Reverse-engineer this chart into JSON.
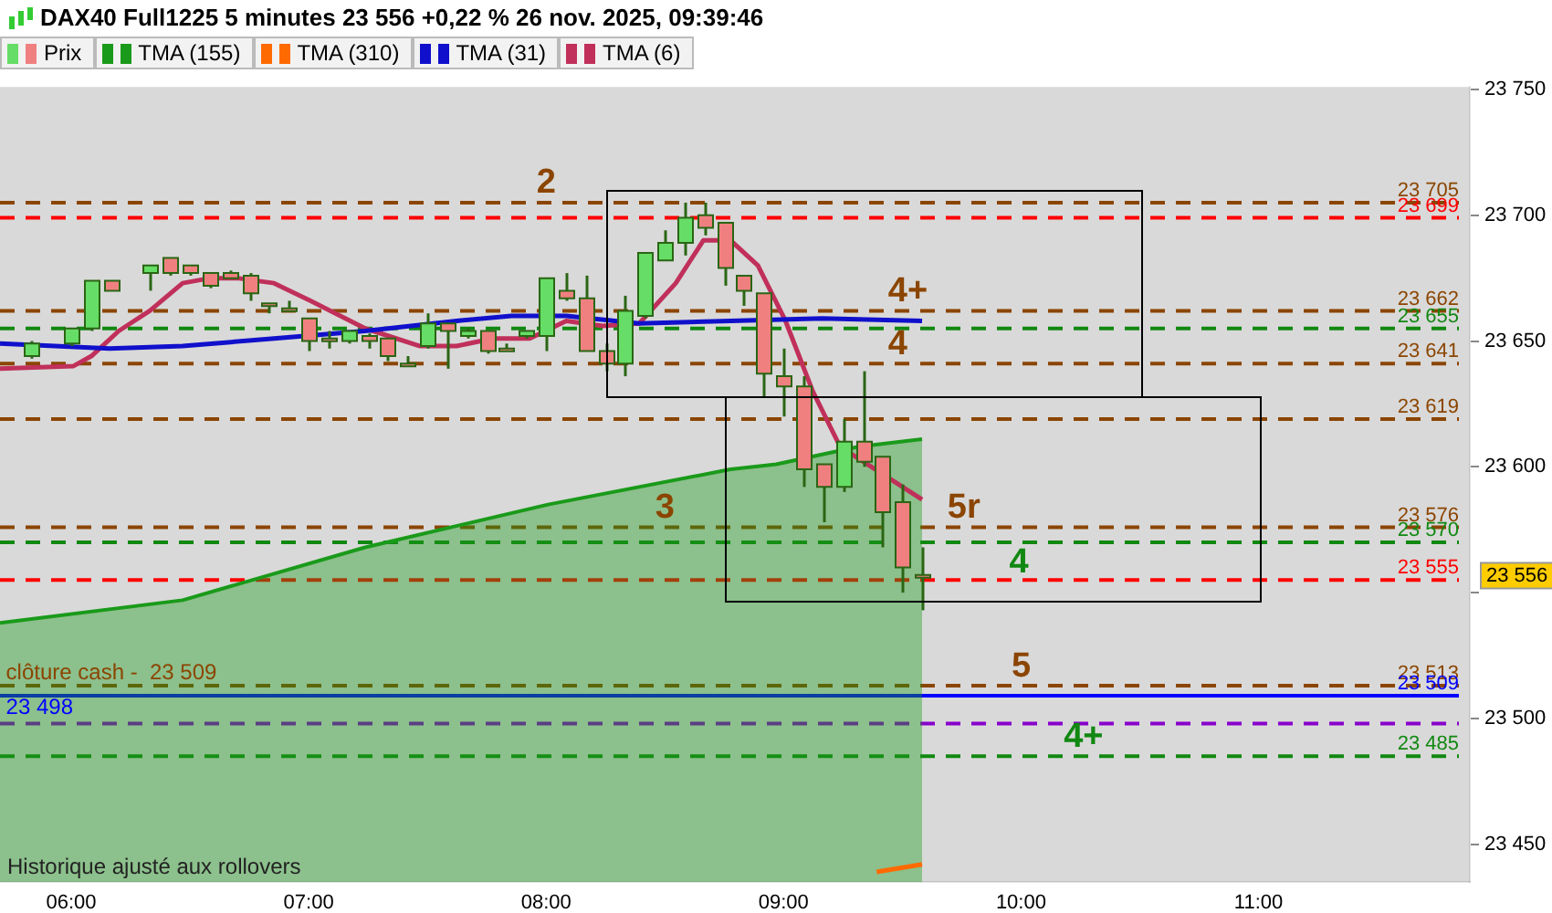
{
  "chart_data": {
    "type": "candlestick",
    "title": "DAX40 Full1225 5 minutes 23 556 +0,22 % 26 nov. 2025, 09:39:46",
    "legend": "top left",
    "marker": "none",
    "grid": false,
    "xlim": [
      5.7,
      11.89
    ],
    "xticks": [
      {
        "value": 6,
        "label": "06:00"
      },
      {
        "value": 7,
        "label": "07:00"
      },
      {
        "value": 8,
        "label": "08:00"
      },
      {
        "value": 9,
        "label": "09:00"
      },
      {
        "value": 10,
        "label": "10:00"
      },
      {
        "value": 11,
        "label": "11:00"
      }
    ],
    "ylim": [
      23435,
      23751
    ],
    "yticks": [
      {
        "value": 23450,
        "label": "23 450"
      },
      {
        "value": 23500,
        "label": "23 500"
      },
      {
        "value": 23550,
        "label": null
      },
      {
        "value": 23600,
        "label": "23 600"
      },
      {
        "value": 23650,
        "label": "23 650"
      },
      {
        "value": 23700,
        "label": "23 700"
      },
      {
        "value": 23750,
        "label": "23 750"
      }
    ],
    "series": [
      {
        "name": "Prix",
        "x": [
          5.8333,
          6,
          6.0833,
          6.1667,
          6.3333,
          6.4167,
          6.5,
          6.5833,
          6.6667,
          6.75,
          6.8333,
          6.9167,
          7,
          7.0833,
          7.1667,
          7.25,
          7.3333,
          7.4167,
          7.5,
          7.5833,
          7.6667,
          7.75,
          7.8333,
          7.9167,
          8,
          8.0833,
          8.1667,
          8.25,
          8.3333,
          8.4167,
          8.5,
          8.5833,
          8.6667,
          8.75,
          8.8333,
          8.9167,
          9,
          9.0833,
          9.1667,
          9.25,
          9.3333,
          9.4167,
          9.5,
          9.5833
        ],
        "ohlc": [
          [
            23644,
            23650,
            23643,
            23649
          ],
          [
            23649,
            23655,
            23648,
            23655
          ],
          [
            23655,
            23674,
            23654,
            23674
          ],
          [
            23674,
            23674,
            23670,
            23670
          ],
          [
            23677,
            23680,
            23670,
            23680
          ],
          [
            23683,
            23683,
            23676,
            23677
          ],
          [
            23680,
            23680,
            23676,
            23677
          ],
          [
            23677,
            23677,
            23671,
            23672
          ],
          [
            23677,
            23678,
            23675,
            23675
          ],
          [
            23676,
            23677,
            23666,
            23669
          ],
          [
            23665,
            23665,
            23661,
            23664
          ],
          [
            23663,
            23666,
            23662,
            23662
          ],
          [
            23659,
            23659,
            23646,
            23650
          ],
          [
            23651,
            23654,
            23647,
            23650
          ],
          [
            23650,
            23654,
            23649,
            23654
          ],
          [
            23652,
            23653,
            23647,
            23650
          ],
          [
            23651,
            23651,
            23642,
            23644
          ],
          [
            23641,
            23644,
            23640,
            23640
          ],
          [
            23648,
            23661,
            23647,
            23657
          ],
          [
            23657,
            23657,
            23639,
            23654
          ],
          [
            23652,
            23655,
            23651,
            23654
          ],
          [
            23654,
            23654,
            23645,
            23646
          ],
          [
            23647,
            23649,
            23646,
            23646
          ],
          [
            23652,
            23654,
            23651,
            23654
          ],
          [
            23652,
            23675,
            23646,
            23675
          ],
          [
            23670,
            23677,
            23666,
            23667
          ],
          [
            23667,
            23676,
            23646,
            23646
          ],
          [
            23646,
            23649,
            23638,
            23641
          ],
          [
            23641,
            23668,
            23636,
            23662
          ],
          [
            23660,
            23685,
            23659,
            23685
          ],
          [
            23682,
            23694,
            23682,
            23689
          ],
          [
            23689,
            23705,
            23684,
            23699
          ],
          [
            23700,
            23705,
            23692,
            23695
          ],
          [
            23697,
            23697,
            23672,
            23679
          ],
          [
            23676,
            23676,
            23664,
            23670
          ],
          [
            23669,
            23669,
            23628,
            23637
          ],
          [
            23636,
            23647,
            23620,
            23632
          ],
          [
            23632,
            23636,
            23592,
            23599
          ],
          [
            23601,
            23601,
            23578,
            23592
          ],
          [
            23592,
            23619,
            23590,
            23610
          ],
          [
            23610,
            23638,
            23600,
            23602
          ],
          [
            23604,
            23604,
            23568,
            23582
          ],
          [
            23586,
            23593,
            23550,
            23560
          ],
          [
            23557,
            23568,
            23543,
            23556
          ]
        ],
        "value_labels": [
          null,
          null,
          null,
          null,
          null,
          null,
          null,
          null,
          null,
          null,
          null,
          null,
          null,
          null,
          null,
          null,
          null,
          null,
          null,
          null,
          null,
          null,
          null,
          null,
          null,
          null,
          null,
          null,
          null,
          null,
          null,
          null,
          null,
          null,
          null,
          null,
          null,
          null,
          null,
          null,
          null,
          null,
          null,
          "23 556"
        ],
        "colors": [
          "#66dd66",
          "#66dd66",
          "#66dd66",
          "#f08080",
          "#66dd66",
          "#f08080",
          "#f08080",
          "#f08080",
          "#f08080",
          "#f08080",
          "#f08080",
          "#f08080",
          "#f08080",
          "#f08080",
          "#66dd66",
          "#f08080",
          "#f08080",
          "#f08080",
          "#66dd66",
          "#f08080",
          "#66dd66",
          "#f08080",
          "#f08080",
          "#66dd66",
          "#66dd66",
          "#f08080",
          "#f08080",
          "#f08080",
          "#66dd66",
          "#66dd66",
          "#66dd66",
          "#66dd66",
          "#f08080",
          "#f08080",
          "#f08080",
          "#f08080",
          "#f08080",
          "#f08080",
          "#f08080",
          "#66dd66",
          "#f08080",
          "#f08080",
          "#f08080",
          "#f08080"
        ]
      },
      {
        "name": "TMA (155)",
        "type": "area",
        "color": "#1a9a1a",
        "x": [
          5.7,
          6.469,
          7.238,
          8.008,
          8.777,
          8.969,
          9.315,
          9.5833
        ],
        "values": [
          23538,
          23547,
          23568,
          23585,
          23599,
          23601,
          23608,
          23611
        ]
      },
      {
        "name": "TMA (310)",
        "type": "line",
        "color": "#ff6a00",
        "x": [
          9.392,
          9.5833
        ],
        "values": [
          23439,
          23442
        ]
      },
      {
        "name": "TMA (31)",
        "type": "line",
        "color": "#1010cc",
        "x": [
          5.7,
          6.162,
          6.469,
          6.854,
          7.238,
          7.623,
          7.854,
          8.085,
          8.392,
          8.777,
          9.162,
          9.5833
        ],
        "values": [
          23649,
          23647,
          23648,
          23651,
          23654,
          23658,
          23660,
          23660,
          23657,
          23658,
          23659,
          23658
        ]
      },
      {
        "name": "TMA (6)",
        "type": "line",
        "color": "#c0305a",
        "x": [
          5.7,
          6.008,
          6.085,
          6.2,
          6.331,
          6.469,
          6.585,
          6.7,
          6.854,
          7.008,
          7.238,
          7.469,
          7.623,
          7.777,
          7.931,
          8.085,
          8.238,
          8.392,
          8.546,
          8.662,
          8.777,
          8.892,
          9.008,
          9.123,
          9.238,
          9.5833
        ],
        "values": [
          23639,
          23640,
          23644,
          23654,
          23662,
          23673,
          23675,
          23675,
          23673,
          23666,
          23655,
          23648,
          23648,
          23651,
          23651,
          23658,
          23656,
          23657,
          23673,
          23690,
          23690,
          23680,
          23658,
          23630,
          23608,
          23587
        ]
      }
    ],
    "ref_lines": [
      {
        "axis": "y",
        "value": 23705,
        "label": "23 705",
        "color": "#8b4500",
        "line_style": "dashed"
      },
      {
        "axis": "y",
        "value": 23699,
        "label": "23 699",
        "color": "#ff0000",
        "line_style": "dashed"
      },
      {
        "axis": "y",
        "value": 23662,
        "label": "23 662",
        "color": "#8b4500",
        "line_style": "dashed"
      },
      {
        "axis": "y",
        "value": 23655,
        "label": "23 655",
        "color": "#118811",
        "line_style": "dashed"
      },
      {
        "axis": "y",
        "value": 23641,
        "label": "23 641",
        "color": "#8b4500",
        "line_style": "dashed"
      },
      {
        "axis": "y",
        "value": 23619,
        "label": "23 619",
        "color": "#8b4500",
        "line_style": "dashed"
      },
      {
        "axis": "y",
        "value": 23576,
        "label": "23 576",
        "color": "#8b4500",
        "line_style": "dashed"
      },
      {
        "axis": "y",
        "value": 23570,
        "label": "23 570",
        "color": "#118811",
        "line_style": "dashed"
      },
      {
        "axis": "y",
        "value": 23555,
        "label": "23 555",
        "color": "#ff0000",
        "line_style": "dashed"
      },
      {
        "axis": "y",
        "value": 23513,
        "label": "23 513",
        "color": "#8b4500",
        "line_style": "dashed"
      },
      {
        "axis": "y",
        "value": 23509,
        "label": "23 509",
        "color": "#0000ff",
        "line_style": "solid"
      },
      {
        "axis": "y",
        "value": 23498,
        "color": "#8800cc",
        "line_style": "dashed"
      },
      {
        "axis": "y",
        "value": 23485,
        "label": "23 485",
        "color": "#118811",
        "line_style": "dashed"
      }
    ],
    "annotations": [
      {
        "text": "2",
        "x": 7.96,
        "y": 23705
      },
      {
        "text": "4+",
        "x": 9.44,
        "y": 23662
      },
      {
        "text": "4",
        "x": 9.44,
        "y": 23641
      },
      {
        "text": "3",
        "x": 8.46,
        "y": 23576
      },
      {
        "text": "5r",
        "x": 9.69,
        "y": 23576
      },
      {
        "text": "4",
        "x": 9.95,
        "y": 23570
      },
      {
        "text": "5",
        "x": 9.96,
        "y": 23513
      },
      {
        "text": "4+",
        "x": 10.18,
        "y": 23485
      },
      {
        "text": "clôture cash -  23 509",
        "x": 5.71,
        "y": 23518
      },
      {
        "text": "23 498",
        "x": 5.71,
        "y": 23504
      },
      "Historique ajusté aux rollovers"
    ]
  }
}
